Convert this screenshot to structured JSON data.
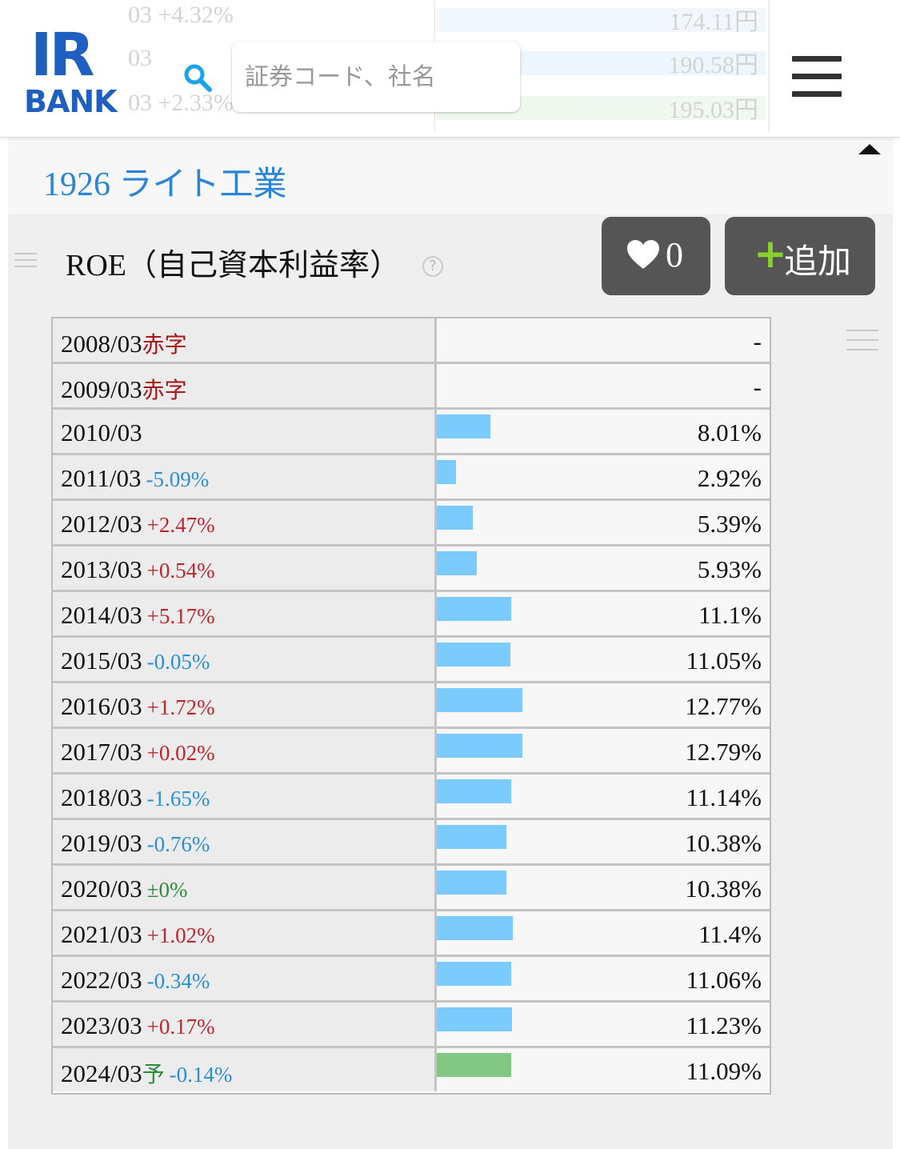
{
  "header": {
    "logo_top": "IR",
    "logo_bottom": "BANK",
    "search_placeholder": "証券コード、社名",
    "ghost_rows": [
      {
        "date": "03 +4.32%",
        "value": "174.11円",
        "bar_color": "#cfe8fb"
      },
      {
        "date": "03",
        "value": "190.58円",
        "bar_color": "#bfe2fb"
      },
      {
        "date": "03 +2.33%",
        "value": "195.03円",
        "bar_color": "#cdebc7"
      }
    ]
  },
  "company": {
    "title": "1926 ライト工業"
  },
  "section": {
    "title": "ROE（自己資本利益率）",
    "help": "?"
  },
  "actions": {
    "like_count": "0",
    "add_label": "追加",
    "add_plus": "+"
  },
  "colors": {
    "bar": "#7ccbff",
    "forecast_bar": "#82c884",
    "positive": "#c0242c",
    "negative": "#2c8fd6",
    "neutral": "#2e8b3a",
    "brand": "#1f5fbf",
    "company": "#2a86d4"
  },
  "table": {
    "rows": [
      {
        "date": "2008/03",
        "tag": "赤字",
        "tag_type": "deficit",
        "change": "",
        "change_type": "",
        "value": "-",
        "roe": null
      },
      {
        "date": "2009/03",
        "tag": "赤字",
        "tag_type": "deficit",
        "change": "",
        "change_type": "",
        "value": "-",
        "roe": null
      },
      {
        "date": "2010/03",
        "tag": "",
        "tag_type": "",
        "change": "",
        "change_type": "",
        "value": "8.01%",
        "roe": 8.01
      },
      {
        "date": "2011/03",
        "tag": "",
        "tag_type": "",
        "change": "-5.09%",
        "change_type": "negative",
        "value": "2.92%",
        "roe": 2.92
      },
      {
        "date": "2012/03",
        "tag": "",
        "tag_type": "",
        "change": "+2.47%",
        "change_type": "positive",
        "value": "5.39%",
        "roe": 5.39
      },
      {
        "date": "2013/03",
        "tag": "",
        "tag_type": "",
        "change": "+0.54%",
        "change_type": "positive",
        "value": "5.93%",
        "roe": 5.93
      },
      {
        "date": "2014/03",
        "tag": "",
        "tag_type": "",
        "change": "+5.17%",
        "change_type": "positive",
        "value": "11.1%",
        "roe": 11.1
      },
      {
        "date": "2015/03",
        "tag": "",
        "tag_type": "",
        "change": "-0.05%",
        "change_type": "negative",
        "value": "11.05%",
        "roe": 11.05
      },
      {
        "date": "2016/03",
        "tag": "",
        "tag_type": "",
        "change": "+1.72%",
        "change_type": "positive",
        "value": "12.77%",
        "roe": 12.77
      },
      {
        "date": "2017/03",
        "tag": "",
        "tag_type": "",
        "change": "+0.02%",
        "change_type": "positive",
        "value": "12.79%",
        "roe": 12.79
      },
      {
        "date": "2018/03",
        "tag": "",
        "tag_type": "",
        "change": "-1.65%",
        "change_type": "negative",
        "value": "11.14%",
        "roe": 11.14
      },
      {
        "date": "2019/03",
        "tag": "",
        "tag_type": "",
        "change": "-0.76%",
        "change_type": "negative",
        "value": "10.38%",
        "roe": 10.38
      },
      {
        "date": "2020/03",
        "tag": "",
        "tag_type": "",
        "change": "±0%",
        "change_type": "neutral",
        "value": "10.38%",
        "roe": 10.38
      },
      {
        "date": "2021/03",
        "tag": "",
        "tag_type": "",
        "change": "+1.02%",
        "change_type": "positive",
        "value": "11.4%",
        "roe": 11.4
      },
      {
        "date": "2022/03",
        "tag": "",
        "tag_type": "",
        "change": "-0.34%",
        "change_type": "negative",
        "value": "11.06%",
        "roe": 11.06
      },
      {
        "date": "2023/03",
        "tag": "",
        "tag_type": "",
        "change": "+0.17%",
        "change_type": "positive",
        "value": "11.23%",
        "roe": 11.23
      },
      {
        "date": "2024/03",
        "tag": "予",
        "tag_type": "forecast",
        "change": "-0.14%",
        "change_type": "negative",
        "value": "11.09%",
        "roe": 11.09,
        "forecast": true
      }
    ]
  }
}
